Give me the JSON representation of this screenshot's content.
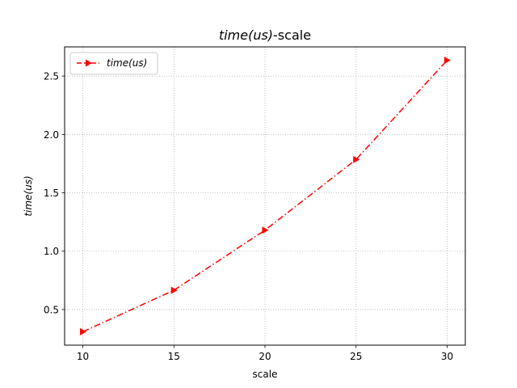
{
  "chart_data": {
    "type": "line",
    "title": "time(us)-scale",
    "title_parts": {
      "italic": "time(us)",
      "rest": "-scale"
    },
    "xlabel": "scale",
    "ylabel": "time(us)",
    "x": [
      10,
      15,
      20,
      25,
      30
    ],
    "series": [
      {
        "name": "time(us)",
        "values": [
          0.31,
          0.665,
          1.18,
          1.785,
          2.635
        ],
        "color": "#ff0000",
        "linestyle": "dashdot",
        "marker": "triangle-right"
      }
    ],
    "xticks": [
      10,
      15,
      20,
      25,
      30
    ],
    "xtick_labels": [
      "10",
      "15",
      "20",
      "25",
      "30"
    ],
    "yticks": [
      0.5,
      1.0,
      1.5,
      2.0,
      2.5
    ],
    "ytick_labels": [
      "0.5",
      "1.0",
      "1.5",
      "2.0",
      "2.5"
    ],
    "xlim": [
      9,
      31
    ],
    "ylim": [
      0.195,
      2.75
    ],
    "grid": true,
    "legend_position": "top-left"
  }
}
